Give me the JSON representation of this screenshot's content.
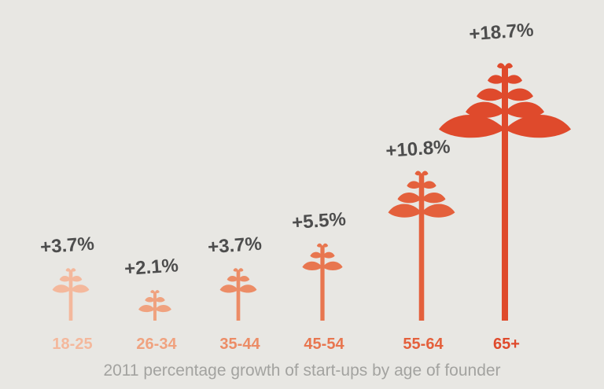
{
  "chart_data": {
    "type": "bar",
    "title": "",
    "xlabel": "",
    "ylabel": "",
    "ylim": [
      0,
      20
    ],
    "grid": false,
    "categories": [
      "18-25",
      "26-34",
      "35-44",
      "45-54",
      "55-64",
      "65+"
    ],
    "values": [
      3.7,
      2.1,
      3.7,
      5.5,
      10.8,
      18.7
    ],
    "value_labels": [
      "+3.7%",
      "+2.1%",
      "+3.7%",
      "+5.5%",
      "+10.8%",
      "+18.7%"
    ],
    "caption": "2011 percentage growth of start-ups by age of founder",
    "mark_style": "plant",
    "colors": [
      "#f4b89c",
      "#f0a27f",
      "#ec8c66",
      "#e8764f",
      "#e4603c",
      "#df4a2c"
    ],
    "label_color": "#4d4d4d",
    "caption_color": "#a3a3a0",
    "background": "#e8e7e3"
  }
}
